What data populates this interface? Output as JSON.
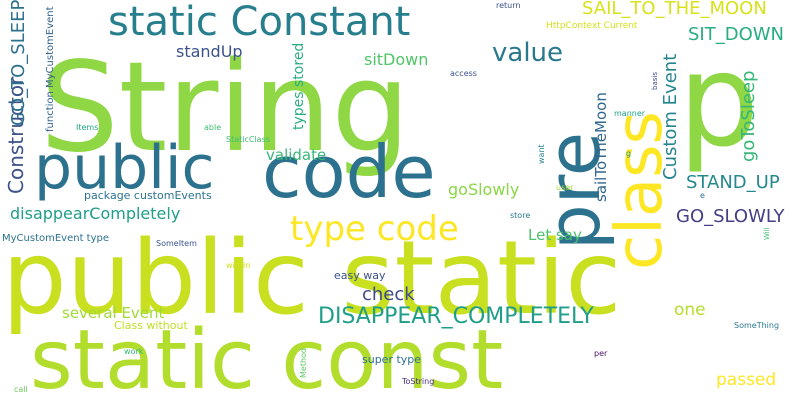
{
  "words": [
    {
      "id": "string",
      "text": "String",
      "color": "#8fd744"
    },
    {
      "id": "public-static",
      "text": "public static",
      "color": "#c8e020"
    },
    {
      "id": "static-const",
      "text": "static const",
      "color": "#b2dd2d"
    },
    {
      "id": "code",
      "text": "code",
      "color": "#2c728e"
    },
    {
      "id": "p",
      "text": "p",
      "color": "#8fd744"
    },
    {
      "id": "class",
      "text": "class",
      "color": "#fde725"
    },
    {
      "id": "pre",
      "text": "pre",
      "color": "#2c728e"
    },
    {
      "id": "public",
      "text": "public",
      "color": "#2c728e"
    },
    {
      "id": "static-constant",
      "text": "static Constant",
      "color": "#277f8e"
    },
    {
      "id": "type-code",
      "text": "type code",
      "color": "#fde725"
    },
    {
      "id": "value",
      "text": "value",
      "color": "#2a788e"
    },
    {
      "id": "disappear-completely-caps",
      "text": "DISAPPEAR_COMPLETELY",
      "color": "#1f9e89"
    },
    {
      "id": "sail-to-the-moon",
      "text": "SAIL_TO_THE_MOON",
      "color": "#d8e219"
    },
    {
      "id": "sit-down-caps",
      "text": "SIT_DOWN",
      "color": "#26ad81"
    },
    {
      "id": "constructor",
      "text": "Constructor",
      "color": "#3b528b"
    },
    {
      "id": "go-to-sleep-caps",
      "text": "GO_TO_SLEEP",
      "color": "#2c728e"
    },
    {
      "id": "custom-event",
      "text": "Custom Event",
      "color": "#25858e"
    },
    {
      "id": "go-to-sleep",
      "text": "goToSleep",
      "color": "#35b779"
    },
    {
      "id": "stand-up-caps",
      "text": "STAND_UP",
      "color": "#23898e"
    },
    {
      "id": "go-slowly-caps",
      "text": "GO_SLOWLY",
      "color": "#433e85"
    },
    {
      "id": "disappear-completely",
      "text": "disappearCompletely",
      "color": "#1f9e89"
    },
    {
      "id": "validate",
      "text": "validate",
      "color": "#37b878"
    },
    {
      "id": "go-slowly",
      "text": "goSlowly",
      "color": "#8bd646"
    },
    {
      "id": "stand-up",
      "text": "standUp",
      "color": "#3b528b"
    },
    {
      "id": "sit-down",
      "text": "sitDown",
      "color": "#52c569"
    },
    {
      "id": "types-stored",
      "text": "types stored",
      "color": "#29af7f"
    },
    {
      "id": "sail-to-the-moon-fn",
      "text": "sailToTheMoon",
      "color": "#31668e"
    },
    {
      "id": "let-say",
      "text": "Let say",
      "color": "#4ac16d"
    },
    {
      "id": "check",
      "text": "check",
      "color": "#3e4989"
    },
    {
      "id": "several-event",
      "text": "several Event",
      "color": "#a2da37"
    },
    {
      "id": "one",
      "text": "one",
      "color": "#b5de2b"
    },
    {
      "id": "passed",
      "text": "passed",
      "color": "#fde725"
    },
    {
      "id": "package-custom-events",
      "text": "package customEvents",
      "color": "#2c728e"
    },
    {
      "id": "my-custom-event-type",
      "text": "MyCustomEvent type",
      "color": "#2c728e"
    },
    {
      "id": "function-my-custom-event",
      "text": "function MyCustomEvent",
      "color": "#32648e"
    },
    {
      "id": "easy-way",
      "text": "easy way",
      "color": "#3b528b"
    },
    {
      "id": "super-type",
      "text": "super type",
      "color": "#2c728e"
    },
    {
      "id": "class-without",
      "text": "Class without",
      "color": "#c0df25"
    },
    {
      "id": "http-context-current",
      "text": "HttpContext Current",
      "color": "#d2e21b"
    },
    {
      "id": "static-class",
      "text": "StaticClass",
      "color": "#3fbc73"
    },
    {
      "id": "some-item",
      "text": "SomeItem",
      "color": "#3b528b"
    },
    {
      "id": "some-thing",
      "text": "SomeThing",
      "color": "#2a788e"
    },
    {
      "id": "to-string",
      "text": "ToString",
      "color": "#472c7a"
    },
    {
      "id": "return",
      "text": "return",
      "color": "#3b528b"
    },
    {
      "id": "access",
      "text": "access",
      "color": "#3b528b"
    },
    {
      "id": "manner",
      "text": "manner",
      "color": "#20a486"
    },
    {
      "id": "basis",
      "text": "basis",
      "color": "#3e4989"
    },
    {
      "id": "items",
      "text": "Items",
      "color": "#20a486"
    },
    {
      "id": "able",
      "text": "able",
      "color": "#3fbc73"
    },
    {
      "id": "want",
      "text": "want",
      "color": "#25858e"
    },
    {
      "id": "user",
      "text": "user",
      "color": "#a8db34"
    },
    {
      "id": "store",
      "text": "store",
      "color": "#2a788e"
    },
    {
      "id": "will",
      "text": "Will",
      "color": "#3fbc73"
    },
    {
      "id": "within",
      "text": "within",
      "color": "#d0e11c"
    },
    {
      "id": "work",
      "text": "work",
      "color": "#35b779"
    },
    {
      "id": "method",
      "text": "Method",
      "color": "#5ec962"
    },
    {
      "id": "per",
      "text": "per",
      "color": "#471164"
    },
    {
      "id": "call",
      "text": "call",
      "color": "#6ccd5a"
    },
    {
      "id": "g",
      "text": "g",
      "color": "#21918c"
    },
    {
      "id": "e",
      "text": "e",
      "color": "#2c728e"
    }
  ]
}
